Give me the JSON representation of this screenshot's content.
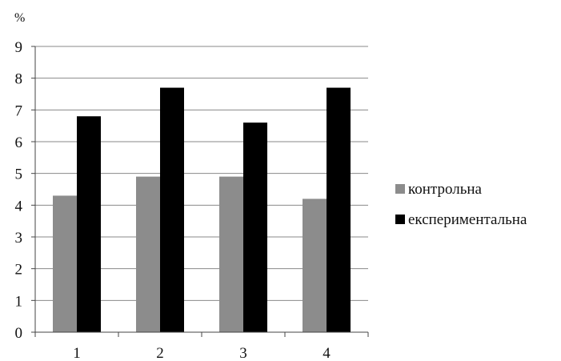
{
  "chart_data": {
    "type": "bar",
    "title": "",
    "xlabel": "",
    "ylabel": "%",
    "categories": [
      "1",
      "2",
      "3",
      "4"
    ],
    "series": [
      {
        "name": "контрольна",
        "color": "#8c8c8c",
        "values": [
          4.3,
          4.9,
          4.9,
          4.2
        ]
      },
      {
        "name": "експериментальна",
        "color": "#000000",
        "values": [
          6.8,
          7.7,
          6.6,
          7.7
        ]
      }
    ],
    "ylim": [
      0,
      9
    ],
    "yticks": [
      "0",
      "1",
      "2",
      "3",
      "4",
      "5",
      "6",
      "7",
      "8",
      "9"
    ],
    "grid": true,
    "legend_position": "right"
  }
}
